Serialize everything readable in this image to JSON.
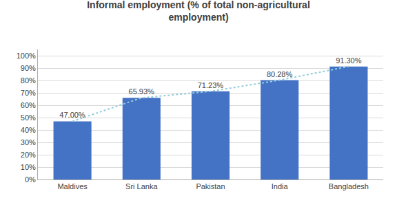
{
  "chart_data": {
    "type": "bar",
    "title": "Informal employment (% of total non-agricultural\nemployment)",
    "categories": [
      "Maldives",
      "Sri Lanka",
      "Pakistan",
      "India",
      "Bangladesh"
    ],
    "series": [
      {
        "type": "bar",
        "color": "#4472C4",
        "values": [
          47.0,
          65.93,
          71.23,
          80.28,
          91.3
        ],
        "value_labels": [
          "47.00%",
          "65.93%",
          "71.23%",
          "80.28%",
          "91.30%"
        ]
      },
      {
        "type": "line",
        "color": "#92CDDC",
        "line_style": "dotted",
        "values": [
          47.0,
          65.93,
          71.23,
          80.28,
          91.3
        ]
      }
    ],
    "data_labels": true,
    "ylim": [
      0,
      105
    ],
    "yticks": [
      {
        "value": 0,
        "label": "0%"
      },
      {
        "value": 10,
        "label": "10%"
      },
      {
        "value": 20,
        "label": "20%"
      },
      {
        "value": 30,
        "label": "30%"
      },
      {
        "value": 40,
        "label": "40%"
      },
      {
        "value": 50,
        "label": "50%"
      },
      {
        "value": 60,
        "label": "60%"
      },
      {
        "value": 70,
        "label": "70%"
      },
      {
        "value": 80,
        "label": "80%"
      },
      {
        "value": 90,
        "label": "90%"
      },
      {
        "value": 100,
        "label": "100%"
      }
    ],
    "grid": true
  }
}
